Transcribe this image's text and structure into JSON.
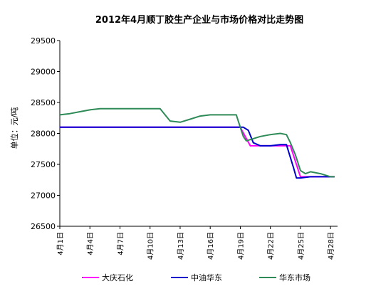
{
  "chart_data": {
    "type": "line",
    "title": "2012年4月顺丁胶生产企业与市场价格对比走势图",
    "ylabel": "单位：元/吨",
    "ylim": [
      26500,
      29500
    ],
    "yticks": [
      29500,
      29000,
      28500,
      28000,
      27500,
      27000,
      26500
    ],
    "xlim": [
      1,
      28.7
    ],
    "xticks": [
      1,
      4,
      7,
      10,
      13,
      16,
      19,
      22,
      25,
      28
    ],
    "xtick_labels": [
      "4月1日",
      "4月4日",
      "4月7日",
      "4月10日",
      "4月13日",
      "4月16日",
      "4月19日",
      "4月22日",
      "4月25日",
      "4月28日"
    ],
    "grid": false,
    "legend_position": "bottom",
    "series": [
      {
        "name": "大庆石化",
        "color": "#FF00FF",
        "x": [
          1,
          17,
          18,
          19,
          20,
          21,
          22,
          23,
          24,
          25,
          26,
          27,
          28,
          28.4
        ],
        "y": [
          28100,
          28100,
          28100,
          28100,
          27800,
          27800,
          27800,
          27800,
          27800,
          27300,
          27300,
          27300,
          27300,
          27300
        ]
      },
      {
        "name": "中油华东",
        "color": "#0000CC",
        "x": [
          1,
          17,
          18.8,
          19.3,
          19.8,
          20.3,
          21,
          22,
          23,
          23.6,
          24.3,
          24.6,
          25,
          26,
          27,
          28.4
        ],
        "y": [
          28100,
          28100,
          28100,
          28100,
          28050,
          27850,
          27800,
          27800,
          27820,
          27820,
          27450,
          27280,
          27280,
          27300,
          27300,
          27300
        ]
      },
      {
        "name": "华东市场",
        "color": "#2E8B57",
        "x": [
          1,
          2,
          3,
          4,
          5,
          6,
          7,
          8,
          9,
          10,
          11,
          12,
          13,
          14,
          15,
          16,
          17,
          18,
          18.6,
          19,
          19.3,
          19.6,
          20,
          21,
          22,
          23,
          23.6,
          24,
          24.5,
          25,
          25.5,
          26,
          27,
          28,
          28.4
        ],
        "y": [
          28300,
          28320,
          28350,
          28380,
          28400,
          28400,
          28400,
          28400,
          28400,
          28400,
          28400,
          28200,
          28180,
          28230,
          28280,
          28300,
          28300,
          28300,
          28300,
          28100,
          27950,
          27880,
          27900,
          27950,
          27980,
          28000,
          27980,
          27850,
          27650,
          27400,
          27350,
          27380,
          27350,
          27300,
          27300
        ]
      }
    ]
  }
}
